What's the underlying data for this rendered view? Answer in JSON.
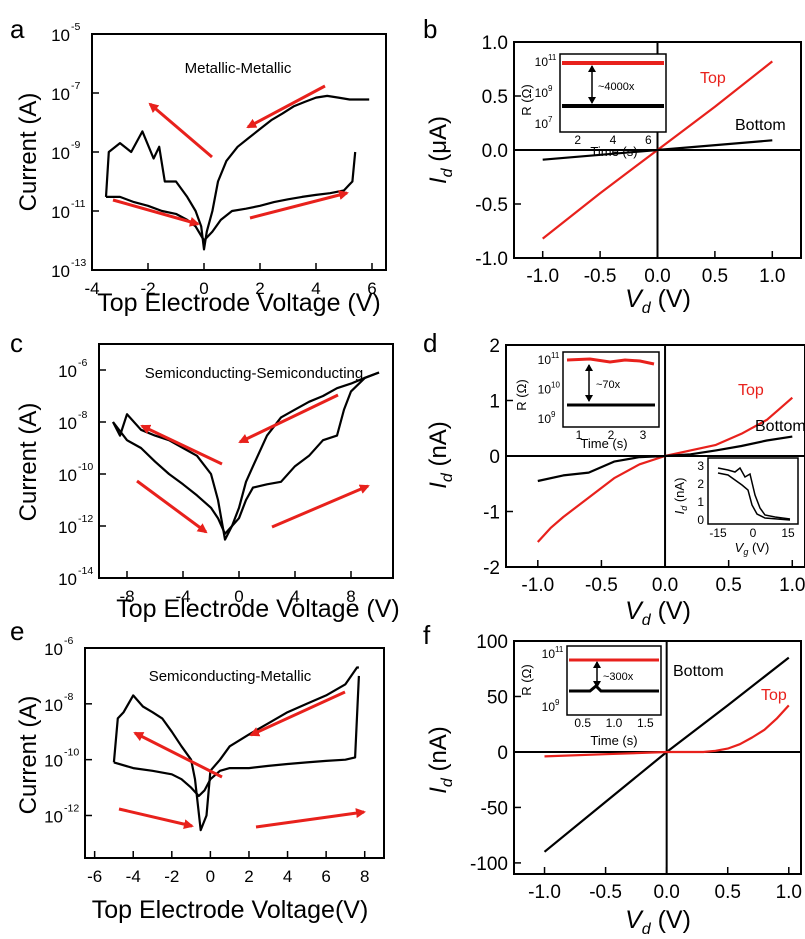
{
  "panels": {
    "a": {
      "label": "a",
      "title": "Metallic-Metallic",
      "xlabel": "Top Electrode Voltage (V)",
      "ylabel": "Current (A)",
      "xticks": [
        "-4",
        "-2",
        "0",
        "2",
        "4",
        "6"
      ],
      "yticks": [
        "10",
        "10",
        "10",
        "10",
        "10"
      ],
      "yexp": [
        "-5",
        "-7",
        "-9",
        "-11",
        "-13"
      ]
    },
    "b": {
      "label": "b",
      "ylabel_pre": "I",
      "ylabel_sub": "d",
      "ylabel_post": " (μA)",
      "xlabel_pre": "V",
      "xlabel_sub": "d",
      "xlabel_post": " (V)",
      "xticks": [
        "-1.0",
        "-0.5",
        "0.0",
        "0.5",
        "1.0"
      ],
      "yticks": [
        "1.0",
        "0.5",
        "0.0",
        "-0.5",
        "-1.0"
      ],
      "top_label": "Top",
      "bottom_label": "Bottom",
      "inset": {
        "ylabel": "R (Ω)",
        "xlabel": "Time (s)",
        "xticks": [
          "2",
          "4",
          "6"
        ],
        "yticks": [
          "10",
          "10",
          "10"
        ],
        "yexp": [
          "11",
          "9",
          "7"
        ],
        "ratio": "~4000x"
      }
    },
    "c": {
      "label": "c",
      "title": "Semiconducting-Semiconducting",
      "xlabel": "Top Electrode Voltage (V)",
      "ylabel": "Current (A)",
      "xticks": [
        "-8",
        "-4",
        "0",
        "4",
        "8"
      ],
      "yticks": [
        "10",
        "10",
        "10",
        "10",
        "10"
      ],
      "yexp": [
        "-6",
        "-8",
        "-10",
        "-12",
        "-14"
      ]
    },
    "d": {
      "label": "d",
      "ylabel_pre": "I",
      "ylabel_sub": "d",
      "ylabel_post": " (nA)",
      "xlabel_pre": "V",
      "xlabel_sub": "d",
      "xlabel_post": " (V)",
      "xticks": [
        "-1.0",
        "-0.5",
        "0.0",
        "0.5",
        "1.0"
      ],
      "yticks": [
        "2",
        "1",
        "0",
        "-1",
        "-2"
      ],
      "top_label": "Top",
      "bottom_label": "Bottom",
      "inset": {
        "ylabel": "R (Ω)",
        "xlabel": "Time (s)",
        "xticks": [
          "1",
          "2",
          "3"
        ],
        "yticks": [
          "10",
          "10",
          "10"
        ],
        "yexp": [
          "11",
          "10",
          "9"
        ],
        "ratio": "~70x"
      },
      "inset2": {
        "ylabel": "I",
        "ylabel_sub": "d",
        "ylabel_post": " (nA)",
        "xlabel": "V",
        "xlabel_sub": "g",
        "xlabel_post": " (V)",
        "xticks": [
          "-15",
          "0",
          "15"
        ],
        "yticks": [
          "3",
          "2",
          "1",
          "0"
        ]
      }
    },
    "e": {
      "label": "e",
      "title": "Semiconducting-Metallic",
      "xlabel": "Top Electrode Voltage(V)",
      "ylabel": "Current (A)",
      "xticks": [
        "-6",
        "-4",
        "-2",
        "0",
        "2",
        "4",
        "6",
        "8"
      ],
      "yticks": [
        "10",
        "10",
        "10",
        "10"
      ],
      "yexp": [
        "-6",
        "-8",
        "-10",
        "-12"
      ]
    },
    "f": {
      "label": "f",
      "ylabel_pre": "I",
      "ylabel_sub": "d",
      "ylabel_post": " (nA)",
      "xlabel_pre": "V",
      "xlabel_sub": "d",
      "xlabel_post": " (V)",
      "xticks": [
        "-1.0",
        "-0.5",
        "0.0",
        "0.5",
        "1.0"
      ],
      "yticks": [
        "100",
        "50",
        "0",
        "-50",
        "-100"
      ],
      "top_label": "Top",
      "bottom_label": "Bottom",
      "inset": {
        "ylabel": "R (Ω)",
        "xlabel": "Time (s)",
        "xticks": [
          "0.5",
          "1.0",
          "1.5"
        ],
        "yticks": [
          "10",
          "10"
        ],
        "yexp": [
          "11",
          "9"
        ],
        "ratio": "~300x"
      }
    }
  },
  "colors": {
    "top": "#e8211c",
    "bottom": "#000000",
    "arrow": "#e8211c"
  },
  "chart_data": [
    {
      "type": "line",
      "panel": "a",
      "title": "Metallic-Metallic",
      "xlabel": "Top Electrode Voltage (V)",
      "ylabel": "Current (A)",
      "yscale": "log",
      "xlim": [
        -4,
        6.5
      ],
      "ylim": [
        1e-13,
        1e-05
      ],
      "series": [
        {
          "x": [
            -3.5,
            -3.4,
            -3,
            -2.6,
            -2.2,
            -1.8,
            -1.6,
            -1.4,
            -1,
            -0.6,
            -0.3,
            -0.1,
            0,
            0.1,
            0.3,
            0.5,
            0.8,
            1.2,
            1.6,
            2,
            2.4,
            2.8,
            3.2,
            3.6,
            4,
            4.4,
            4.8,
            5.2,
            5.5,
            5.9
          ],
          "y": [
            3e-11,
            1e-09,
            2e-09,
            1e-09,
            5e-09,
            6e-10,
            1.5e-09,
            1e-10,
            1e-10,
            3e-11,
            1e-11,
            3e-12,
            5e-13,
            2e-12,
            1e-11,
            1e-10,
            5e-10,
            1.5e-09,
            3e-09,
            6e-09,
            1.2e-08,
            2e-08,
            3.5e-08,
            5e-08,
            7e-08,
            8e-08,
            7e-08,
            6e-08,
            6e-08,
            6e-08
          ]
        },
        {
          "x": [
            -3.5,
            -3,
            -2.5,
            -2,
            -1.5,
            -1,
            -0.6,
            -0.3,
            0,
            0.3,
            0.6,
            1,
            1.5,
            2,
            2.5,
            3,
            3.5,
            4,
            4.5,
            5,
            5.2,
            5.3,
            5.4
          ],
          "y": [
            3e-11,
            3e-11,
            2e-11,
            1.5e-11,
            1e-11,
            8e-12,
            5e-12,
            3e-12,
            1e-12,
            2e-12,
            5e-12,
            1e-11,
            1.2e-11,
            1.5e-11,
            2e-11,
            2.5e-11,
            3e-11,
            3.5e-11,
            4e-11,
            5e-11,
            8e-11,
            1e-10,
            1e-09
          ]
        }
      ]
    },
    {
      "type": "line",
      "panel": "b",
      "xlabel": "V_d (V)",
      "ylabel": "I_d (μA)",
      "xlim": [
        -1.25,
        1.25
      ],
      "ylim": [
        -1.0,
        1.0
      ],
      "series": [
        {
          "name": "Top",
          "x": [
            -1.0,
            -0.5,
            0,
            0.5,
            1.0
          ],
          "y": [
            -0.82,
            -0.4,
            0,
            0.4,
            0.82
          ]
        },
        {
          "name": "Bottom",
          "x": [
            -1.0,
            0,
            1.0
          ],
          "y": [
            -0.09,
            0,
            0.09
          ]
        }
      ]
    },
    {
      "type": "line",
      "panel": "c",
      "title": "Semiconducting-Semiconducting",
      "xlabel": "Top Electrode Voltage (V)",
      "ylabel": "Current (A)",
      "yscale": "log",
      "xlim": [
        -10,
        11
      ],
      "ylim": [
        1e-14,
        1e-05
      ],
      "series": [
        {
          "x": [
            -9,
            -8.5,
            -8,
            -7,
            -6,
            -5,
            -4,
            -3,
            -2,
            -1.5,
            -1,
            -0.5,
            0,
            0.5,
            1,
            2,
            3,
            4,
            5,
            6,
            7,
            8,
            9,
            10
          ],
          "y": [
            1e-08,
            3e-09,
            2e-08,
            5e-09,
            3e-09,
            2e-09,
            1e-09,
            5e-10,
            1e-10,
            1e-11,
            3e-13,
            1e-12,
            5e-12,
            5e-11,
            2e-10,
            3e-09,
            1.5e-08,
            3e-08,
            6e-08,
            1e-07,
            2e-07,
            3e-07,
            5e-07,
            8e-07
          ]
        },
        {
          "x": [
            -9,
            -8,
            -7,
            -6,
            -5,
            -4,
            -3,
            -2,
            -1.5,
            -1,
            -0.5,
            0,
            0.5,
            1,
            2,
            3,
            4,
            5,
            6,
            7,
            7.5,
            8,
            9,
            10
          ],
          "y": [
            1e-08,
            2e-09,
            1e-09,
            3e-10,
            1e-10,
            4e-11,
            1.5e-11,
            5e-12,
            2e-12,
            5e-13,
            1e-12,
            2e-12,
            1e-11,
            3e-11,
            4e-11,
            5e-11,
            2e-10,
            5e-10,
            2e-09,
            3e-09,
            3e-08,
            1.5e-07,
            5e-07,
            8e-07
          ]
        }
      ]
    },
    {
      "type": "line",
      "panel": "d",
      "xlabel": "V_d (V)",
      "ylabel": "I_d (nA)",
      "xlim": [
        -1.25,
        1.1
      ],
      "ylim": [
        -2,
        2
      ],
      "series": [
        {
          "name": "Top",
          "x": [
            -1.0,
            -0.9,
            -0.8,
            -0.6,
            -0.4,
            -0.2,
            0,
            0.2,
            0.4,
            0.6,
            0.8,
            0.9,
            1.0
          ],
          "y": [
            -1.55,
            -1.3,
            -1.1,
            -0.75,
            -0.4,
            -0.15,
            0,
            0.1,
            0.2,
            0.4,
            0.65,
            0.85,
            1.05
          ]
        },
        {
          "name": "Bottom",
          "x": [
            -1.0,
            -0.8,
            -0.6,
            -0.4,
            -0.2,
            0,
            0.2,
            0.4,
            0.6,
            0.8,
            1.0
          ],
          "y": [
            -0.45,
            -0.35,
            -0.3,
            -0.1,
            -0.02,
            0,
            0.03,
            0.1,
            0.18,
            0.28,
            0.35
          ]
        }
      ]
    },
    {
      "type": "line",
      "panel": "e",
      "title": "Semiconducting-Metallic",
      "xlabel": "Top Electrode Voltage(V)",
      "ylabel": "Current (A)",
      "yscale": "log",
      "xlim": [
        -6.5,
        9
      ],
      "ylim": [
        3e-14,
        1e-06
      ],
      "series": [
        {
          "x": [
            -5,
            -4.8,
            -4.5,
            -4,
            -3.5,
            -3,
            -2.5,
            -2,
            -1.5,
            -1,
            -0.8,
            -0.5,
            -0.2,
            0,
            0.5,
            1,
            2,
            3,
            4,
            5,
            6,
            7,
            7.6,
            7.7
          ],
          "y": [
            8e-11,
            3e-09,
            5e-09,
            2e-08,
            8e-09,
            5e-09,
            3e-09,
            1e-09,
            3e-10,
            1e-10,
            2e-11,
            3e-13,
            1e-12,
            4e-11,
            1e-10,
            3e-10,
            8e-10,
            2e-09,
            5e-09,
            1e-08,
            2e-08,
            5e-08,
            2e-07,
            2e-07
          ]
        },
        {
          "x": [
            -5,
            -4,
            -3,
            -2,
            -1.5,
            -1,
            -0.6,
            -0.3,
            0,
            0.5,
            1,
            2,
            3,
            4,
            5,
            6,
            7,
            7.5,
            7.7
          ],
          "y": [
            8e-11,
            5e-11,
            4e-11,
            3e-11,
            2e-11,
            1e-11,
            5e-12,
            8e-12,
            2e-11,
            4e-11,
            5e-11,
            5e-11,
            6e-11,
            7e-11,
            8e-11,
            9e-11,
            1e-10,
            1.2e-10,
            1e-07
          ]
        }
      ]
    },
    {
      "type": "line",
      "panel": "f",
      "xlabel": "V_d (V)",
      "ylabel": "I_d (nA)",
      "xlim": [
        -1.25,
        1.1
      ],
      "ylim": [
        -110,
        100
      ],
      "series": [
        {
          "name": "Bottom",
          "x": [
            -1.0,
            -0.5,
            0,
            0.5,
            1.0
          ],
          "y": [
            -90,
            -45,
            0,
            42,
            85
          ]
        },
        {
          "name": "Top",
          "x": [
            -1.0,
            -0.5,
            0,
            0.3,
            0.4,
            0.5,
            0.6,
            0.7,
            0.8,
            0.9,
            1.0
          ],
          "y": [
            -4,
            -2,
            0,
            0,
            1,
            3,
            7,
            13,
            20,
            30,
            42
          ]
        }
      ]
    }
  ]
}
